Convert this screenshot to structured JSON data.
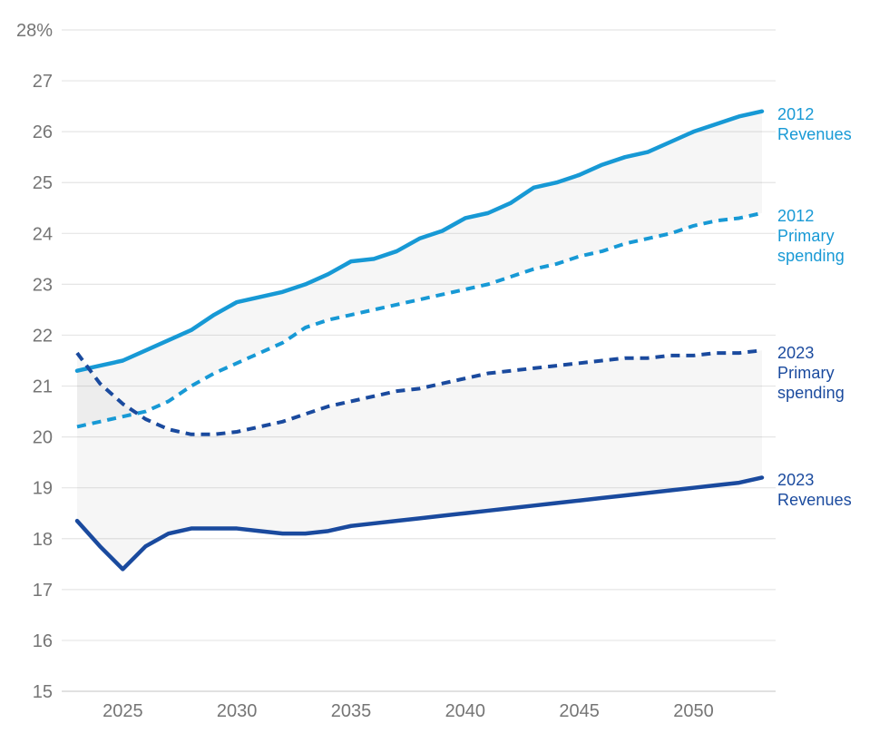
{
  "chart_data": {
    "type": "line",
    "title": "",
    "xlabel": "",
    "ylabel": "",
    "unit": "% of GDP (percent)",
    "xlim": [
      2023,
      2053
    ],
    "ylim": [
      15,
      28
    ],
    "grid": true,
    "legend_position": "right",
    "x": [
      2023,
      2024,
      2025,
      2026,
      2027,
      2028,
      2029,
      2030,
      2031,
      2032,
      2033,
      2034,
      2035,
      2036,
      2037,
      2038,
      2039,
      2040,
      2041,
      2042,
      2043,
      2044,
      2045,
      2046,
      2047,
      2048,
      2049,
      2050,
      2051,
      2052,
      2053
    ],
    "x_ticks": [
      2025,
      2030,
      2035,
      2040,
      2045,
      2050
    ],
    "y_tick_labels": [
      "28%",
      "27",
      "26",
      "25",
      "24",
      "23",
      "22",
      "21",
      "20",
      "19",
      "18",
      "17",
      "16",
      "15"
    ],
    "y_tick_values": [
      28,
      27,
      26,
      25,
      24,
      23,
      22,
      21,
      20,
      19,
      18,
      17,
      16,
      15
    ],
    "series": [
      {
        "name": "2012 Revenues",
        "style": "solid",
        "color_key": "light_blue",
        "values": [
          21.3,
          21.4,
          21.5,
          21.7,
          21.9,
          22.1,
          22.4,
          22.65,
          22.75,
          22.85,
          23.0,
          23.2,
          23.45,
          23.5,
          23.65,
          23.9,
          24.05,
          24.3,
          24.4,
          24.6,
          24.9,
          25.0,
          25.15,
          25.35,
          25.5,
          25.6,
          25.8,
          26.0,
          26.15,
          26.3,
          26.4
        ]
      },
      {
        "name": "2012 Primary spending",
        "style": "dashed",
        "color_key": "light_blue",
        "values": [
          20.2,
          20.3,
          20.4,
          20.5,
          20.7,
          21.0,
          21.25,
          21.45,
          21.65,
          21.85,
          22.15,
          22.3,
          22.4,
          22.5,
          22.6,
          22.7,
          22.8,
          22.9,
          23.0,
          23.15,
          23.3,
          23.4,
          23.55,
          23.65,
          23.8,
          23.9,
          24.0,
          24.15,
          24.25,
          24.3,
          24.4
        ]
      },
      {
        "name": "2023 Primary spending",
        "style": "dashed",
        "color_key": "dark_blue",
        "values": [
          21.65,
          21.05,
          20.65,
          20.35,
          20.15,
          20.05,
          20.05,
          20.1,
          20.2,
          20.3,
          20.45,
          20.6,
          20.7,
          20.8,
          20.9,
          20.95,
          21.05,
          21.15,
          21.25,
          21.3,
          21.35,
          21.4,
          21.45,
          21.5,
          21.55,
          21.55,
          21.6,
          21.6,
          21.65,
          21.65,
          21.7
        ]
      },
      {
        "name": "2023 Revenues",
        "style": "solid",
        "color_key": "dark_blue",
        "values": [
          18.35,
          17.85,
          17.4,
          17.85,
          18.1,
          18.2,
          18.2,
          18.2,
          18.15,
          18.1,
          18.1,
          18.15,
          18.25,
          18.3,
          18.35,
          18.4,
          18.45,
          18.5,
          18.55,
          18.6,
          18.65,
          18.7,
          18.75,
          18.8,
          18.85,
          18.9,
          18.95,
          19.0,
          19.05,
          19.1,
          19.2
        ]
      }
    ],
    "shaded_bands": [
      {
        "between": [
          "2012 Revenues",
          "2012 Primary spending"
        ],
        "top_series": 0,
        "bottom_series": 1
      },
      {
        "between": [
          "2023 Primary spending",
          "2023 Revenues"
        ],
        "top_series": 2,
        "bottom_series": 3
      }
    ]
  },
  "legend": [
    {
      "series_index": 0,
      "lines": [
        "2012",
        "Revenues"
      ]
    },
    {
      "series_index": 1,
      "lines": [
        "2012",
        "Primary",
        "spending"
      ]
    },
    {
      "series_index": 2,
      "lines": [
        "2023",
        "Primary",
        "spending"
      ]
    },
    {
      "series_index": 3,
      "lines": [
        "2023",
        "Revenues"
      ]
    }
  ],
  "colors": {
    "light_blue": "#1799d5",
    "dark_blue": "#1a4a9e",
    "gridline": "#e5e5e5",
    "axis_line": "#d7d7d7",
    "tick_text": "#757575",
    "band_fill": "rgba(20,20,20,0.04)",
    "background": "#ffffff"
  }
}
